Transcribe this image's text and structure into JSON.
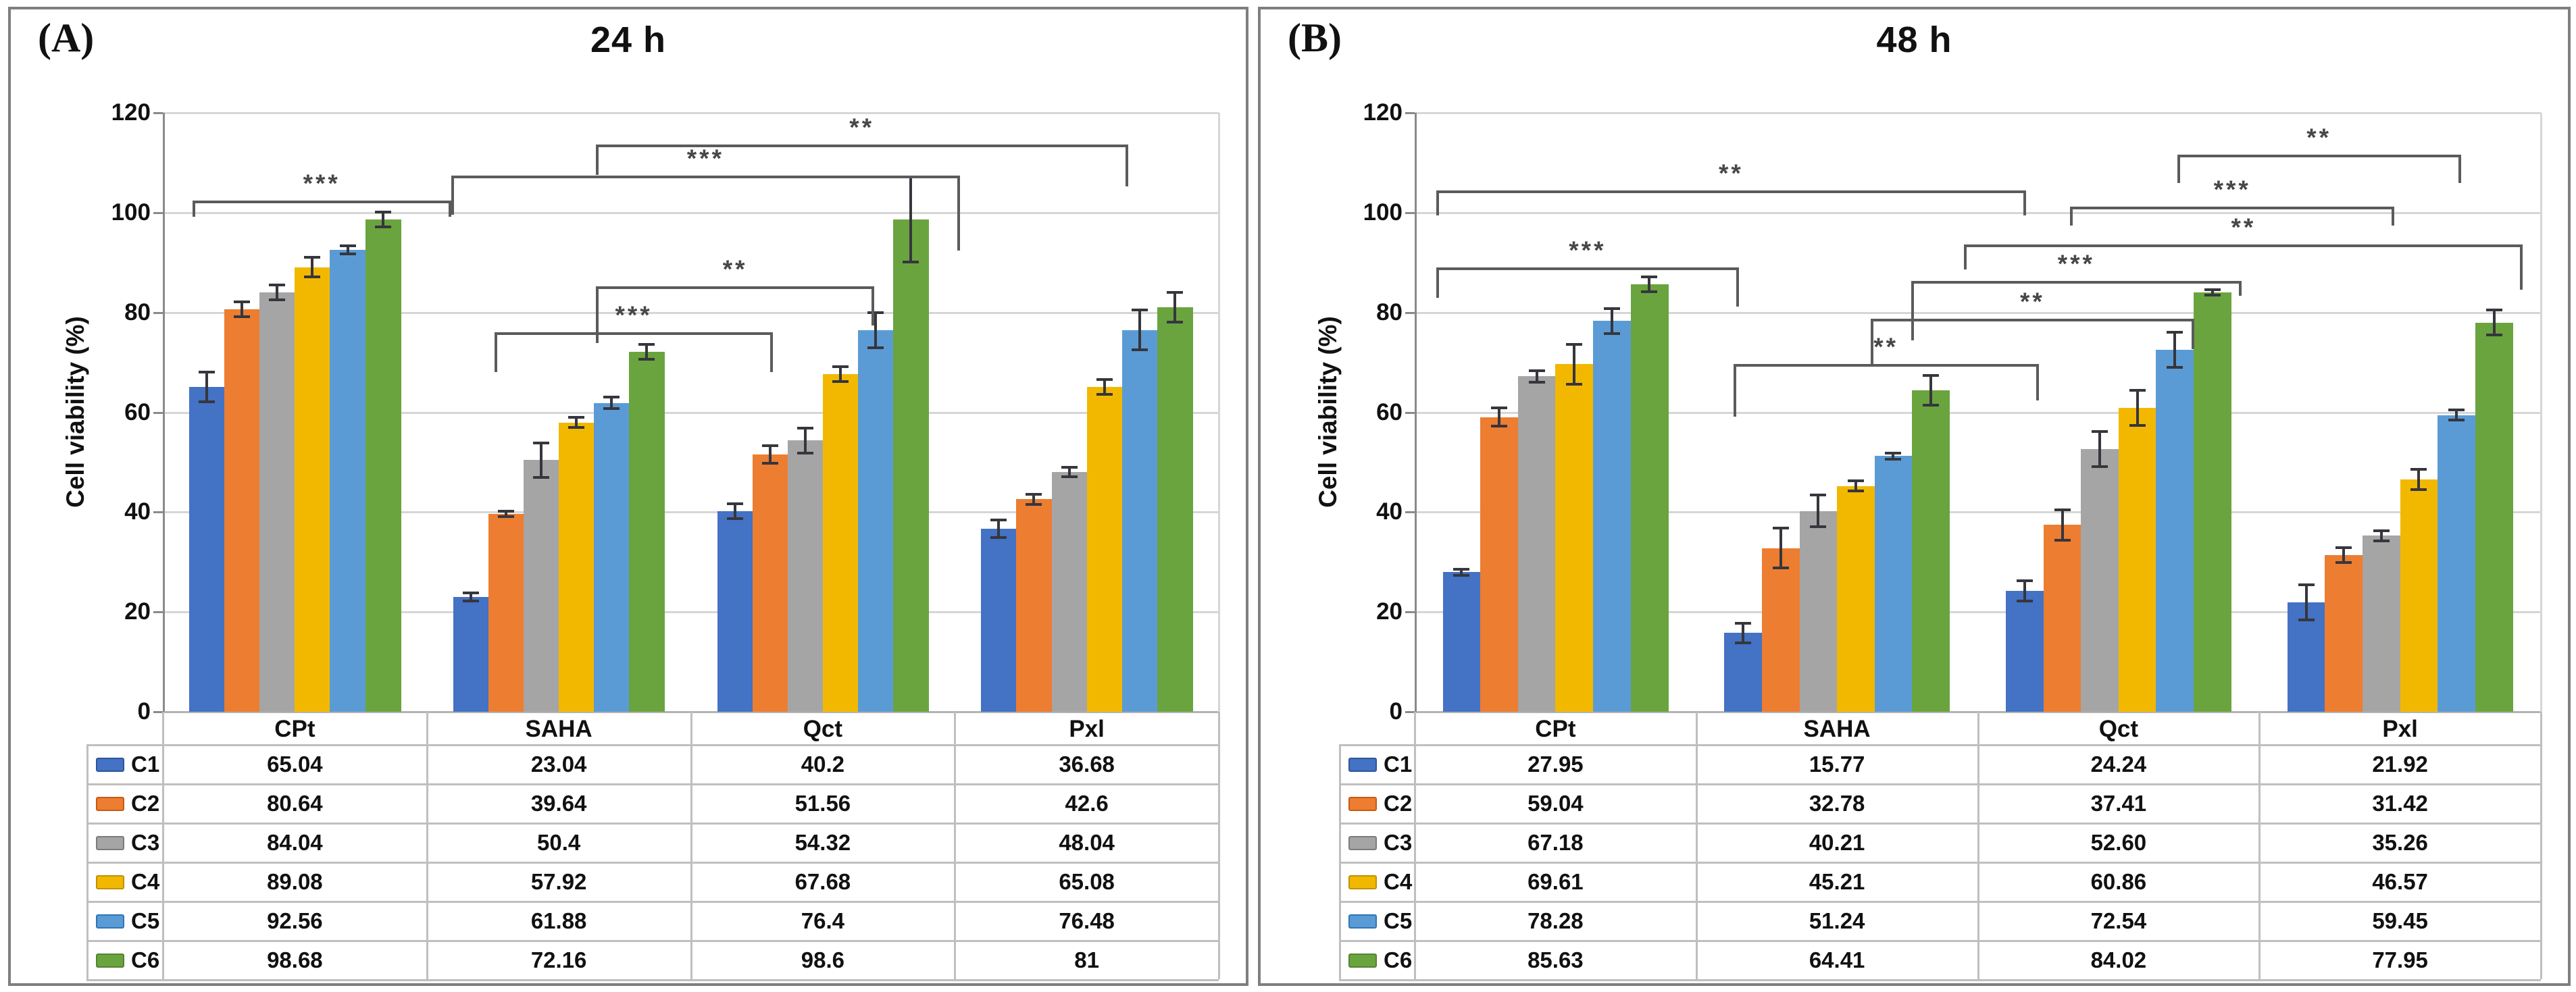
{
  "axis": {
    "ylabel": "Cell viability (%)",
    "yticks": [
      0,
      20,
      40,
      60,
      80,
      100,
      120
    ],
    "ylim": [
      0,
      120
    ],
    "grid": "horizontal"
  },
  "categories": [
    "CPt",
    "SAHA",
    "Qct",
    "Pxl"
  ],
  "palette": [
    {
      "name": "C1",
      "fill": "#4472C4",
      "edge": "#2F5597"
    },
    {
      "name": "C2",
      "fill": "#ED7D31",
      "edge": "#C55A11"
    },
    {
      "name": "C3",
      "fill": "#A5A5A5",
      "edge": "#7B7B7B"
    },
    {
      "name": "C4",
      "fill": "#F2B800",
      "edge": "#BF9000"
    },
    {
      "name": "C5",
      "fill": "#5B9BD5",
      "edge": "#2E75B6"
    },
    {
      "name": "C6",
      "fill": "#6AA43E",
      "edge": "#548235"
    }
  ],
  "chart_data": [
    {
      "type": "bar",
      "panel_label": "(A)",
      "title": "24 h",
      "xlabel": "",
      "ylabel": "Cell viability (%)",
      "ylim": [
        0,
        120
      ],
      "legend_position": "table-left",
      "grid": "horizontal",
      "categories": [
        "CPt",
        "SAHA",
        "Qct",
        "Pxl"
      ],
      "series": [
        {
          "name": "C1",
          "values": [
            65.04,
            23.04,
            40.2,
            36.68
          ],
          "errors": [
            3.0,
            0.8,
            1.5,
            1.8
          ]
        },
        {
          "name": "C2",
          "values": [
            80.64,
            39.64,
            51.56,
            42.6
          ],
          "errors": [
            1.5,
            0.5,
            1.8,
            1.0
          ]
        },
        {
          "name": "C3",
          "values": [
            84.04,
            50.4,
            54.32,
            48.04
          ],
          "errors": [
            1.5,
            3.5,
            2.5,
            1.0
          ]
        },
        {
          "name": "C4",
          "values": [
            89.08,
            57.92,
            67.68,
            65.08
          ],
          "errors": [
            2.0,
            1.0,
            1.5,
            1.5
          ]
        },
        {
          "name": "C5",
          "values": [
            92.56,
            61.88,
            76.4,
            76.48
          ],
          "errors": [
            0.8,
            1.2,
            3.5,
            4.0
          ]
        },
        {
          "name": "C6",
          "values": [
            98.68,
            72.16,
            98.6,
            81.0
          ],
          "errors": [
            1.5,
            1.5,
            8.5,
            3.0
          ]
        }
      ],
      "table_rows": [
        [
          "65.04",
          "23.04",
          "40.2",
          "36.68"
        ],
        [
          "80.64",
          "39.64",
          "51.56",
          "42.6"
        ],
        [
          "84.04",
          "50.4",
          "54.32",
          "48.04"
        ],
        [
          "89.08",
          "57.92",
          "67.68",
          "65.08"
        ],
        [
          "92.56",
          "61.88",
          "76.4",
          "76.48"
        ],
        [
          "98.68",
          "72.16",
          "98.6",
          "81"
        ]
      ],
      "significance": [
        {
          "label": "***",
          "x1": 2.8,
          "x2": 27.3,
          "y": 102.4,
          "d1": 3.2,
          "d2": 3.2
        },
        {
          "label": "***",
          "x1": 27.3,
          "x2": 75.5,
          "y": 107.4,
          "d1": 7.8,
          "d2": 15.0
        },
        {
          "label": "**",
          "x1": 41.0,
          "x2": 91.4,
          "y": 113.6,
          "d1": 6.0,
          "d2": 8.4
        },
        {
          "label": "**",
          "x1": 41.0,
          "x2": 67.4,
          "y": 85.2,
          "d1": 11.4,
          "d2": 7.8
        },
        {
          "label": "***",
          "x1": 31.4,
          "x2": 57.8,
          "y": 76.0,
          "d1": 8.0,
          "d2": 8.0
        }
      ]
    },
    {
      "type": "bar",
      "panel_label": "(B)",
      "title": "48 h",
      "xlabel": "",
      "ylabel": "Cell viability (%)",
      "ylim": [
        0,
        120
      ],
      "legend_position": "table-left",
      "grid": "horizontal",
      "categories": [
        "CPt",
        "SAHA",
        "Qct",
        "Pxl"
      ],
      "series": [
        {
          "name": "C1",
          "values": [
            27.95,
            15.77,
            24.24,
            21.92
          ],
          "errors": [
            0.6,
            2.0,
            2.0,
            3.5
          ]
        },
        {
          "name": "C2",
          "values": [
            59.04,
            32.78,
            37.41,
            31.42
          ],
          "errors": [
            1.8,
            4.0,
            3.0,
            1.5
          ]
        },
        {
          "name": "C3",
          "values": [
            67.18,
            40.21,
            52.6,
            35.26
          ],
          "errors": [
            1.2,
            3.2,
            3.5,
            1.0
          ]
        },
        {
          "name": "C4",
          "values": [
            69.61,
            45.21,
            60.86,
            46.57
          ],
          "errors": [
            4.0,
            1.0,
            3.5,
            2.0
          ]
        },
        {
          "name": "C5",
          "values": [
            78.28,
            51.24,
            72.54,
            59.45
          ],
          "errors": [
            2.5,
            0.6,
            3.5,
            1.0
          ]
        },
        {
          "name": "C6",
          "values": [
            85.63,
            64.41,
            84.02,
            77.95
          ],
          "errors": [
            1.5,
            3.0,
            0.6,
            2.5
          ]
        }
      ],
      "table_rows": [
        [
          "27.95",
          "15.77",
          "24.24",
          "21.92"
        ],
        [
          "59.04",
          "32.78",
          "37.41",
          "31.42"
        ],
        [
          "67.18",
          "40.21",
          "52.60",
          "35.26"
        ],
        [
          "69.61",
          "45.21",
          "60.86",
          "46.57"
        ],
        [
          "78.28",
          "51.24",
          "72.54",
          "59.45"
        ],
        [
          "85.63",
          "64.41",
          "84.02",
          "77.95"
        ]
      ],
      "significance": [
        {
          "label": "***",
          "x1": 1.9,
          "x2": 28.8,
          "y": 89.0,
          "d1": 6.1,
          "d2": 7.8
        },
        {
          "label": "**",
          "x1": 1.9,
          "x2": 54.3,
          "y": 104.4,
          "d1": 4.9,
          "d2": 4.9
        },
        {
          "label": "***",
          "x1": 58.2,
          "x2": 87.0,
          "y": 101.2,
          "d1": 3.8,
          "d2": 3.8
        },
        {
          "label": "**",
          "x1": 67.7,
          "x2": 92.9,
          "y": 111.6,
          "d1": 5.7,
          "d2": 5.7
        },
        {
          "label": "**",
          "x1": 48.8,
          "x2": 98.4,
          "y": 93.6,
          "d1": 5.0,
          "d2": 9.1
        },
        {
          "label": "***",
          "x1": 44.1,
          "x2": 73.4,
          "y": 86.3,
          "d1": 11.9,
          "d2": 3.0
        },
        {
          "label": "**",
          "x1": 40.5,
          "x2": 69.2,
          "y": 78.7,
          "d1": 9.5,
          "d2": 6.1
        },
        {
          "label": "**",
          "x1": 28.3,
          "x2": 55.4,
          "y": 69.7,
          "d1": 10.6,
          "d2": 7.4
        }
      ]
    }
  ]
}
